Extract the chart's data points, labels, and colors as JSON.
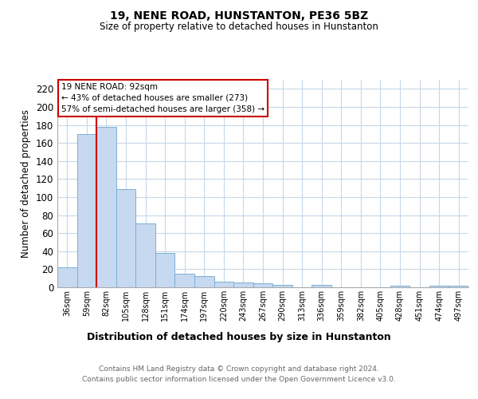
{
  "title1": "19, NENE ROAD, HUNSTANTON, PE36 5BZ",
  "title2": "Size of property relative to detached houses in Hunstanton",
  "xlabel": "Distribution of detached houses by size in Hunstanton",
  "ylabel": "Number of detached properties",
  "bar_labels": [
    "36sqm",
    "59sqm",
    "82sqm",
    "105sqm",
    "128sqm",
    "151sqm",
    "174sqm",
    "197sqm",
    "220sqm",
    "243sqm",
    "267sqm",
    "290sqm",
    "313sqm",
    "336sqm",
    "359sqm",
    "382sqm",
    "405sqm",
    "428sqm",
    "451sqm",
    "474sqm",
    "497sqm"
  ],
  "bar_values": [
    22,
    170,
    178,
    109,
    71,
    38,
    15,
    12,
    6,
    5,
    4,
    3,
    0,
    3,
    0,
    0,
    0,
    2,
    0,
    2,
    2
  ],
  "bar_color": "#c6d9f0",
  "bar_edge_color": "#7bafd4",
  "bg_color": "#ffffff",
  "grid_color": "#c8d8e8",
  "annotation_text": "19 NENE ROAD: 92sqm\n← 43% of detached houses are smaller (273)\n57% of semi-detached houses are larger (358) →",
  "annotation_box_color": "#ffffff",
  "annotation_box_edge": "#cc0000",
  "vline_color": "#cc0000",
  "vline_x": 1.5,
  "ylim": [
    0,
    230
  ],
  "yticks": [
    0,
    20,
    40,
    60,
    80,
    100,
    120,
    140,
    160,
    180,
    200,
    220
  ],
  "footer1": "Contains HM Land Registry data © Crown copyright and database right 2024.",
  "footer2": "Contains public sector information licensed under the Open Government Licence v3.0."
}
